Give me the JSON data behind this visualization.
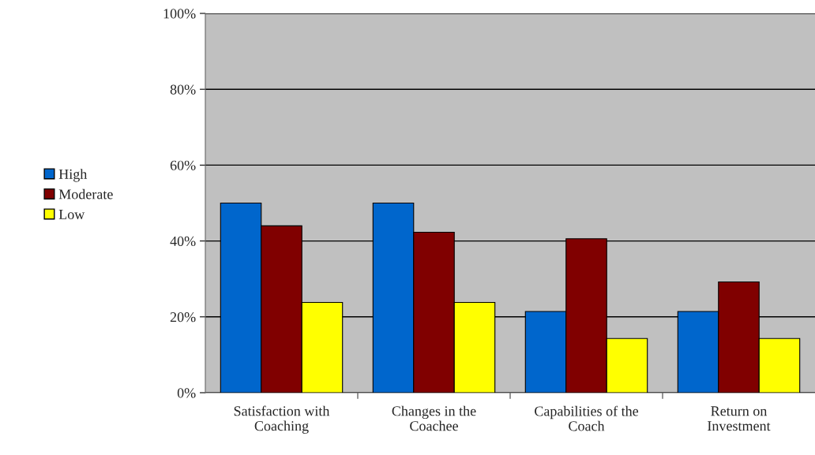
{
  "chart_data": {
    "type": "bar",
    "categories": [
      "Satisfaction with\nCoaching",
      "Changes in the\nCoachee",
      "Capabilities of the\nCoach",
      "Return on\nInvestment"
    ],
    "series": [
      {
        "name": "High",
        "color": "#0066cc",
        "values": [
          50,
          50,
          21.4,
          21.4
        ]
      },
      {
        "name": "Moderate",
        "color": "#800000",
        "values": [
          44,
          42.3,
          40.6,
          29.2
        ]
      },
      {
        "name": "Low",
        "color": "#ffff00",
        "values": [
          23.8,
          23.8,
          14.3,
          14.3
        ]
      }
    ],
    "ylim": [
      0,
      100
    ],
    "yticks": [
      {
        "value": 0,
        "label": "0%"
      },
      {
        "value": 20,
        "label": "20%"
      },
      {
        "value": 40,
        "label": "40%"
      },
      {
        "value": 60,
        "label": "60%"
      },
      {
        "value": 80,
        "label": "80%"
      },
      {
        "value": 100,
        "label": "100%"
      }
    ],
    "grid": "y",
    "legend": "left"
  }
}
